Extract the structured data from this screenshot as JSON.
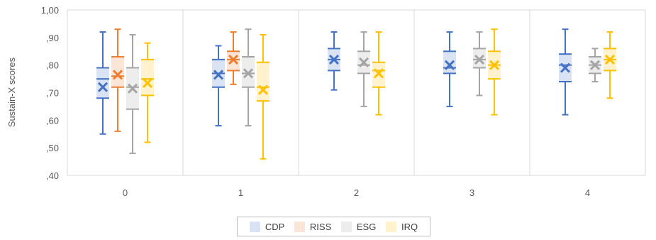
{
  "chart_data": {
    "type": "box",
    "title": "",
    "xlabel": "",
    "ylabel": "Sustain-X scores",
    "ylim": [
      0.4,
      1.0
    ],
    "yticks": [
      ",40",
      ",50",
      ",60",
      ",70",
      ",80",
      ",90",
      "1,00"
    ],
    "categories": [
      "0",
      "1",
      "2",
      "3",
      "4"
    ],
    "grid": "vertical category separators",
    "legend_position": "bottom",
    "series": [
      {
        "name": "CDP",
        "color": "#4472c4",
        "box_fill": "#dae3f3",
        "boxes": [
          {
            "min": 0.55,
            "q1": 0.68,
            "median": 0.75,
            "q3": 0.79,
            "max": 0.92,
            "mean": 0.72
          },
          {
            "min": 0.58,
            "q1": 0.72,
            "median": 0.77,
            "q3": 0.82,
            "max": 0.87,
            "mean": 0.765
          },
          {
            "min": 0.71,
            "q1": 0.78,
            "median": 0.82,
            "q3": 0.86,
            "max": 0.92,
            "mean": 0.82
          },
          {
            "min": 0.65,
            "q1": 0.77,
            "median": 0.79,
            "q3": 0.85,
            "max": 0.92,
            "mean": 0.8
          },
          {
            "min": 0.62,
            "q1": 0.74,
            "median": 0.8,
            "q3": 0.84,
            "max": 0.93,
            "mean": 0.79
          }
        ]
      },
      {
        "name": "RISS",
        "color": "#ed7d31",
        "box_fill": "#fbe5d6",
        "boxes": [
          {
            "min": 0.56,
            "q1": 0.72,
            "median": 0.76,
            "q3": 0.83,
            "max": 0.93,
            "mean": 0.765
          },
          {
            "min": 0.73,
            "q1": 0.78,
            "median": 0.82,
            "q3": 0.85,
            "max": 0.92,
            "mean": 0.82
          }
        ]
      },
      {
        "name": "ESG",
        "color": "#a5a5a5",
        "box_fill": "#ededed",
        "boxes": [
          {
            "min": 0.48,
            "q1": 0.64,
            "median": 0.72,
            "q3": 0.79,
            "max": 0.91,
            "mean": 0.715
          },
          {
            "min": 0.58,
            "q1": 0.72,
            "median": 0.77,
            "q3": 0.83,
            "max": 0.93,
            "mean": 0.77
          },
          {
            "min": 0.65,
            "q1": 0.77,
            "median": 0.8,
            "q3": 0.85,
            "max": 0.92,
            "mean": 0.81
          },
          {
            "min": 0.69,
            "q1": 0.79,
            "median": 0.82,
            "q3": 0.86,
            "max": 0.92,
            "mean": 0.82
          },
          {
            "min": 0.74,
            "q1": 0.77,
            "median": 0.8,
            "q3": 0.83,
            "max": 0.86,
            "mean": 0.8
          }
        ]
      },
      {
        "name": "IRQ",
        "color": "#ffc000",
        "box_fill": "#fff2cc",
        "boxes": [
          {
            "min": 0.52,
            "q1": 0.69,
            "median": 0.75,
            "q3": 0.82,
            "max": 0.88,
            "mean": 0.735
          },
          {
            "min": 0.46,
            "q1": 0.67,
            "median": 0.72,
            "q3": 0.81,
            "max": 0.91,
            "mean": 0.71
          },
          {
            "min": 0.62,
            "q1": 0.72,
            "median": 0.78,
            "q3": 0.81,
            "max": 0.92,
            "mean": 0.77
          },
          {
            "min": 0.62,
            "q1": 0.75,
            "median": 0.8,
            "q3": 0.85,
            "max": 0.93,
            "mean": 0.8
          },
          {
            "min": 0.68,
            "q1": 0.78,
            "median": 0.82,
            "q3": 0.86,
            "max": 0.92,
            "mean": 0.82
          }
        ]
      }
    ],
    "series_categories": {
      "CDP": [
        "0",
        "1",
        "2",
        "3",
        "4"
      ],
      "RISS": [
        "0",
        "1"
      ],
      "ESG": [
        "0",
        "1",
        "2",
        "3",
        "4"
      ],
      "IRQ": [
        "0",
        "1",
        "2",
        "3",
        "4"
      ]
    }
  }
}
